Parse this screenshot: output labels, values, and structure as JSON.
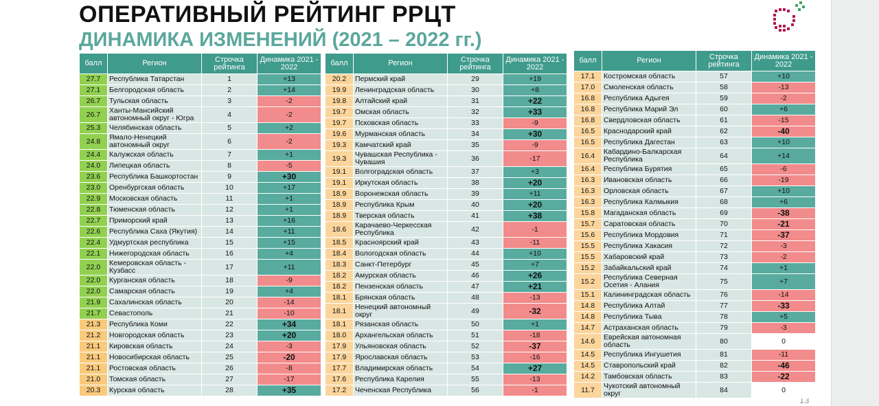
{
  "header": {
    "title": "ОПЕРАТИВНЫЙ РЕЙТИНГ РРЦТ",
    "subtitle": "ДИНАМИКА ИЗМЕНЕНИЙ (2021 – 2022 гг.)"
  },
  "tables": [
    {
      "header": [
        "балл",
        "Регион",
        "Строчка рейтинга",
        "Динамика 2021 - 2022"
      ],
      "rows": [
        [
          "27.7",
          "Республика Татарстан",
          "1",
          "+13"
        ],
        [
          "27.1",
          "Белгородская область",
          "2",
          "+14"
        ],
        [
          "26.7",
          "Тульская область",
          "3",
          "-2"
        ],
        [
          "26.7",
          "Ханты-Мансийский автономный округ - Югра",
          "4",
          "-2"
        ],
        [
          "25.3",
          "Челябинская область",
          "5",
          "+2"
        ],
        [
          "24.8",
          "Ямало-Ненецкий автономный округ",
          "6",
          "-2"
        ],
        [
          "24.4",
          "Калужская область",
          "7",
          "+1"
        ],
        [
          "24.0",
          "Липецкая область",
          "8",
          "-5"
        ],
        [
          "23.6",
          "Республика Башкортостан",
          "9",
          "+30"
        ],
        [
          "23.0",
          "Оренбургская область",
          "10",
          "+17"
        ],
        [
          "22.9",
          "Московская область",
          "11",
          "+1"
        ],
        [
          "22.8",
          "Тюменская область",
          "12",
          "+1"
        ],
        [
          "22.7",
          "Приморский край",
          "13",
          "+16"
        ],
        [
          "22.6",
          "Республика Саха (Якутия)",
          "14",
          "+11"
        ],
        [
          "22.4",
          "Удмуртская республика",
          "15",
          "+15"
        ],
        [
          "22.1",
          "Нижегородская область",
          "16",
          "+4"
        ],
        [
          "22.0",
          "Кемеровская область - Кузбасс",
          "17",
          "+11"
        ],
        [
          "22.0",
          "Курганская область",
          "18",
          "-9"
        ],
        [
          "22.0",
          "Самарская область",
          "19",
          "+4"
        ],
        [
          "21.9",
          "Сахалинская область",
          "20",
          "-14"
        ],
        [
          "21.7",
          "Севастополь",
          "21",
          "-10"
        ],
        [
          "21.3",
          "Республика Коми",
          "22",
          "+34"
        ],
        [
          "21.2",
          "Новгородская область",
          "23",
          "+20"
        ],
        [
          "21.1",
          "Кировская область",
          "24",
          "-3"
        ],
        [
          "21.1",
          "Новосибирская область",
          "25",
          "-20"
        ],
        [
          "21.1",
          "Ростовская область",
          "26",
          "-8"
        ],
        [
          "21.0",
          "Томская область",
          "27",
          "-17"
        ],
        [
          "20.3",
          "Курская область",
          "28",
          "+35"
        ]
      ]
    },
    {
      "header": [
        "балл",
        "Регион",
        "Строчка рейтинга",
        "Динамика 2021 - 2022"
      ],
      "rows": [
        [
          "20.2",
          "Пермский край",
          "29",
          "+19"
        ],
        [
          "19.9",
          "Ленинградская область",
          "30",
          "+8"
        ],
        [
          "19.8",
          "Алтайский край",
          "31",
          "+22"
        ],
        [
          "19.7",
          "Омская область",
          "32",
          "+33"
        ],
        [
          "19.7",
          "Псковская область",
          "33",
          "-9"
        ],
        [
          "19.6",
          "Мурманская область",
          "34",
          "+30"
        ],
        [
          "19.3",
          "Камчатский край",
          "35",
          "-9"
        ],
        [
          "19.3",
          "Чувашская Республика - Чувашия",
          "36",
          "-17"
        ],
        [
          "19.1",
          "Волгоградская область",
          "37",
          "+3"
        ],
        [
          "19.1",
          "Иркутская область",
          "38",
          "+20"
        ],
        [
          "18.9",
          "Воронежская область",
          "39",
          "+11"
        ],
        [
          "18.9",
          "Республика Крым",
          "40",
          "+20"
        ],
        [
          "18.9",
          "Тверская область",
          "41",
          "+38"
        ],
        [
          "18.6",
          "Карачаево-Черкесская Республика",
          "42",
          "-1"
        ],
        [
          "18.5",
          "Красноярский край",
          "43",
          "-11"
        ],
        [
          "18.4",
          "Вологодская область",
          "44",
          "+10"
        ],
        [
          "18.3",
          "Санкт-Петербург",
          "45",
          "+7"
        ],
        [
          "18.2",
          "Амурская область",
          "46",
          "+26"
        ],
        [
          "18.2",
          "Пензенская область",
          "47",
          "+21"
        ],
        [
          "18.1",
          "Брянская область",
          "48",
          "-13"
        ],
        [
          "18.1",
          "Ненецкий автономный округ",
          "49",
          "-32"
        ],
        [
          "18.1",
          "Рязанская область",
          "50",
          "+1"
        ],
        [
          "18.0",
          "Архангельская область",
          "51",
          "-18"
        ],
        [
          "17.9",
          "Ульяновская область",
          "52",
          "-37"
        ],
        [
          "17.9",
          "Ярославская область",
          "53",
          "-16"
        ],
        [
          "17.7",
          "Владимирская область",
          "54",
          "+27"
        ],
        [
          "17.6",
          "Республика Карелия",
          "55",
          "-13"
        ],
        [
          "17.2",
          "Чеченская Республика",
          "56",
          "-1"
        ]
      ]
    },
    {
      "header": [
        "балл",
        "Регион",
        "Строчка рейтинга",
        "Динамика 2021 - 2022"
      ],
      "rows": [
        [
          "17.1",
          "Костромская область",
          "57",
          "+10"
        ],
        [
          "17.0",
          "Смоленская область",
          "58",
          "-13"
        ],
        [
          "16.8",
          "Республика Адыгея",
          "59",
          "-2"
        ],
        [
          "16.8",
          "Республика Марий Эл",
          "60",
          "+6"
        ],
        [
          "16.8",
          "Свердловская область",
          "61",
          "-15"
        ],
        [
          "16.5",
          "Краснодарский край",
          "62",
          "-40"
        ],
        [
          "16.5",
          "Республика Дагестан",
          "63",
          "+10"
        ],
        [
          "16.4",
          "Кабардино-Балкарская Республика",
          "64",
          "+14"
        ],
        [
          "16.4",
          "Республика Бурятия",
          "65",
          "-6"
        ],
        [
          "16.3",
          "Ивановская область",
          "66",
          "-19"
        ],
        [
          "16.3",
          "Орловская область",
          "67",
          "+10"
        ],
        [
          "16.3",
          "Республика Калмыкия",
          "68",
          "+6"
        ],
        [
          "15.8",
          "Магаданская область",
          "69",
          "-38"
        ],
        [
          "15.7",
          "Саратовская область",
          "70",
          "-21"
        ],
        [
          "15.6",
          "Республика Мордовия",
          "71",
          "-37"
        ],
        [
          "15.5",
          "Республика Хакасия",
          "72",
          "-3"
        ],
        [
          "15.5",
          "Хабаровский край",
          "73",
          "-2"
        ],
        [
          "15.2",
          "Забайкальский край",
          "74",
          "+1"
        ],
        [
          "15.2",
          "Республика Северная Осетия - Алания",
          "75",
          "+7"
        ],
        [
          "15.1",
          "Калининградская область",
          "76",
          "-14"
        ],
        [
          "14.8",
          "Республика Алтай",
          "77",
          "-33"
        ],
        [
          "14.8",
          "Республика Тыва",
          "78",
          "+5"
        ],
        [
          "14.7",
          "Астраханская область",
          "79",
          "-3"
        ],
        [
          "14.6",
          "Еврейская автономная область",
          "80",
          "0"
        ],
        [
          "14.5",
          "Республика Ингушетия",
          "81",
          "-11"
        ],
        [
          "14.5",
          "Ставропольский край",
          "82",
          "-46"
        ],
        [
          "14.2",
          "Тамбовская область",
          "83",
          "-22"
        ],
        [
          "11.7",
          "Чукотский автономный округ",
          "84",
          "0"
        ]
      ]
    }
  ],
  "page_number": "13"
}
